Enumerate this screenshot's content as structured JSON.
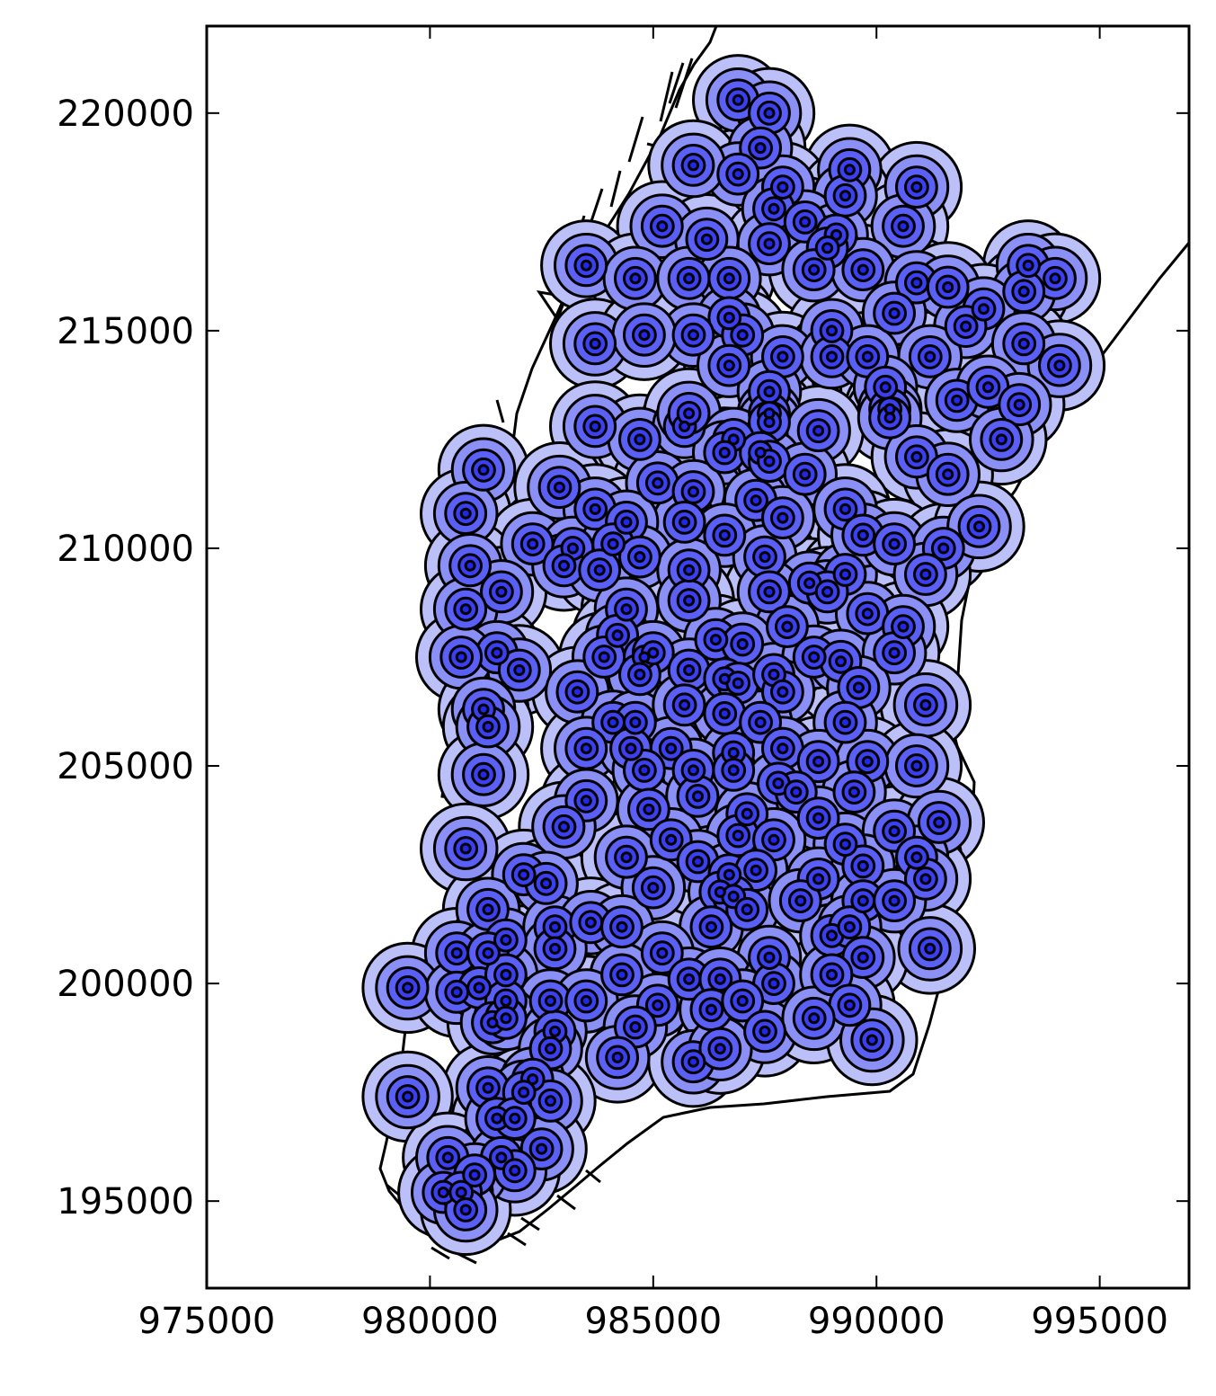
{
  "chart_data": {
    "type": "scatter",
    "title": "",
    "xlabel": "",
    "ylabel": "",
    "xlim": [
      975000,
      997000
    ],
    "ylim": [
      193000,
      222000
    ],
    "xticks": [
      975000,
      980000,
      985000,
      990000,
      995000
    ],
    "yticks": [
      195000,
      200000,
      205000,
      210000,
      215000,
      220000
    ],
    "xtick_labels": [
      "975000",
      "980000",
      "985000",
      "990000",
      "995000"
    ],
    "ytick_labels": [
      "195000",
      "200000",
      "205000",
      "210000",
      "215000",
      "220000"
    ],
    "grid": false,
    "legend": "none",
    "buffer_radii": [
      1000,
      700,
      450,
      250,
      100
    ],
    "buffer_colors": [
      "#bcc0f8",
      "#8a90f5",
      "#5a5ff5",
      "#3a3ff0",
      "#2226e6"
    ],
    "outline_color": "#000000",
    "series": [
      {
        "values": [
          [
            986900,
            220300
          ],
          [
            987600,
            220000
          ],
          [
            987400,
            219200
          ],
          [
            986900,
            218600
          ],
          [
            985900,
            218800
          ],
          [
            989400,
            218700
          ],
          [
            990900,
            218300
          ],
          [
            987900,
            218300
          ],
          [
            989300,
            218100
          ],
          [
            987700,
            217800
          ],
          [
            988400,
            217500
          ],
          [
            985200,
            217400
          ],
          [
            986200,
            217100
          ],
          [
            989100,
            217200
          ],
          [
            990600,
            217400
          ],
          [
            988900,
            216900
          ],
          [
            987600,
            217000
          ],
          [
            993400,
            216500
          ],
          [
            994000,
            216200
          ],
          [
            983500,
            216500
          ],
          [
            984600,
            216200
          ],
          [
            985800,
            216200
          ],
          [
            986700,
            216200
          ],
          [
            988600,
            216400
          ],
          [
            989700,
            216400
          ],
          [
            990900,
            216100
          ],
          [
            991600,
            216000
          ],
          [
            993300,
            215900
          ],
          [
            992400,
            215500
          ],
          [
            986700,
            215300
          ],
          [
            987000,
            214900
          ],
          [
            985900,
            214900
          ],
          [
            990400,
            215400
          ],
          [
            992000,
            215100
          ],
          [
            983700,
            214700
          ],
          [
            984800,
            214900
          ],
          [
            989000,
            215000
          ],
          [
            993300,
            214700
          ],
          [
            994100,
            214200
          ],
          [
            986700,
            214200
          ],
          [
            987900,
            214400
          ],
          [
            989000,
            214400
          ],
          [
            989800,
            214400
          ],
          [
            991200,
            214400
          ],
          [
            987600,
            213600
          ],
          [
            987600,
            213100
          ],
          [
            987600,
            212900
          ],
          [
            990200,
            213700
          ],
          [
            990300,
            213200
          ],
          [
            990300,
            213000
          ],
          [
            991800,
            213400
          ],
          [
            992500,
            213700
          ],
          [
            993200,
            213300
          ],
          [
            983700,
            212800
          ],
          [
            984700,
            212500
          ],
          [
            985700,
            212800
          ],
          [
            985800,
            213100
          ],
          [
            986800,
            212500
          ],
          [
            986600,
            212200
          ],
          [
            988700,
            212700
          ],
          [
            992800,
            212500
          ],
          [
            981200,
            211800
          ],
          [
            982900,
            211400
          ],
          [
            985100,
            211500
          ],
          [
            985900,
            211300
          ],
          [
            987400,
            212200
          ],
          [
            987600,
            212000
          ],
          [
            988400,
            211700
          ],
          [
            990900,
            212100
          ],
          [
            991600,
            211700
          ],
          [
            980800,
            210800
          ],
          [
            983700,
            210900
          ],
          [
            987300,
            211100
          ],
          [
            987900,
            210700
          ],
          [
            989300,
            210900
          ],
          [
            985700,
            210600
          ],
          [
            984400,
            210600
          ],
          [
            982300,
            210100
          ],
          [
            983200,
            210000
          ],
          [
            984100,
            210100
          ],
          [
            980900,
            209600
          ],
          [
            983000,
            209600
          ],
          [
            984700,
            209800
          ],
          [
            986600,
            210300
          ],
          [
            987500,
            209800
          ],
          [
            988500,
            209200
          ],
          [
            989300,
            209400
          ],
          [
            989700,
            210300
          ],
          [
            990400,
            210100
          ],
          [
            991500,
            210000
          ],
          [
            992300,
            210500
          ],
          [
            991100,
            209400
          ],
          [
            981600,
            209000
          ],
          [
            983800,
            209500
          ],
          [
            985800,
            209500
          ],
          [
            987600,
            209000
          ],
          [
            988900,
            209000
          ],
          [
            980800,
            208600
          ],
          [
            984400,
            208600
          ],
          [
            985800,
            208800
          ],
          [
            988000,
            208200
          ],
          [
            989800,
            208500
          ],
          [
            990600,
            208200
          ],
          [
            984200,
            208000
          ],
          [
            986400,
            207900
          ],
          [
            987000,
            207800
          ],
          [
            981500,
            207600
          ],
          [
            980700,
            207500
          ],
          [
            982000,
            207200
          ],
          [
            983900,
            207500
          ],
          [
            984800,
            207500
          ],
          [
            985000,
            207600
          ],
          [
            984700,
            207100
          ],
          [
            985800,
            207200
          ],
          [
            986600,
            207000
          ],
          [
            986900,
            206900
          ],
          [
            987700,
            207100
          ],
          [
            988600,
            207500
          ],
          [
            989200,
            207400
          ],
          [
            990400,
            207600
          ],
          [
            983300,
            206700
          ],
          [
            987900,
            206700
          ],
          [
            989600,
            206800
          ],
          [
            981200,
            206300
          ],
          [
            981300,
            205900
          ],
          [
            984100,
            206000
          ],
          [
            984600,
            206000
          ],
          [
            985700,
            206400
          ],
          [
            986600,
            206200
          ],
          [
            987400,
            206000
          ],
          [
            989300,
            206000
          ],
          [
            991100,
            206400
          ],
          [
            983500,
            205400
          ],
          [
            984500,
            205400
          ],
          [
            985400,
            205400
          ],
          [
            986800,
            205300
          ],
          [
            986800,
            204900
          ],
          [
            987900,
            205400
          ],
          [
            988700,
            205100
          ],
          [
            989800,
            205100
          ],
          [
            990900,
            205000
          ],
          [
            981200,
            204800
          ],
          [
            984800,
            204900
          ],
          [
            985900,
            204900
          ],
          [
            987800,
            204600
          ],
          [
            988200,
            204400
          ],
          [
            989500,
            204400
          ],
          [
            983500,
            204200
          ],
          [
            984900,
            204000
          ],
          [
            986000,
            204300
          ],
          [
            987100,
            203900
          ],
          [
            988700,
            203800
          ],
          [
            983000,
            203600
          ],
          [
            986900,
            203400
          ],
          [
            987700,
            203300
          ],
          [
            989300,
            203200
          ],
          [
            990400,
            203500
          ],
          [
            991400,
            203700
          ],
          [
            980800,
            203100
          ],
          [
            985400,
            203300
          ],
          [
            986000,
            202800
          ],
          [
            990900,
            202900
          ],
          [
            982100,
            202500
          ],
          [
            982600,
            202300
          ],
          [
            984400,
            202900
          ],
          [
            986700,
            202500
          ],
          [
            987300,
            202600
          ],
          [
            988700,
            202400
          ],
          [
            989700,
            202700
          ],
          [
            991100,
            202400
          ],
          [
            985000,
            202200
          ],
          [
            986500,
            202100
          ],
          [
            986800,
            202000
          ],
          [
            987100,
            201700
          ],
          [
            988300,
            201900
          ],
          [
            989700,
            201900
          ],
          [
            990400,
            201900
          ],
          [
            981300,
            201700
          ],
          [
            981700,
            201000
          ],
          [
            982800,
            201300
          ],
          [
            983600,
            201400
          ],
          [
            984300,
            201300
          ],
          [
            986300,
            201300
          ],
          [
            989000,
            201100
          ],
          [
            989400,
            201300
          ],
          [
            991200,
            200800
          ],
          [
            980600,
            200700
          ],
          [
            981300,
            200700
          ],
          [
            982800,
            200800
          ],
          [
            985200,
            200700
          ],
          [
            987600,
            200600
          ],
          [
            989700,
            200600
          ],
          [
            979500,
            199900
          ],
          [
            980600,
            199800
          ],
          [
            981100,
            199900
          ],
          [
            981700,
            200200
          ],
          [
            984300,
            200200
          ],
          [
            985800,
            200100
          ],
          [
            986500,
            200100
          ],
          [
            987700,
            200000
          ],
          [
            989000,
            200200
          ],
          [
            981700,
            199600
          ],
          [
            982700,
            199600
          ],
          [
            983500,
            199600
          ],
          [
            985100,
            199500
          ],
          [
            986300,
            199400
          ],
          [
            987000,
            199600
          ],
          [
            989400,
            199500
          ],
          [
            981400,
            199100
          ],
          [
            981700,
            199200
          ],
          [
            982800,
            198900
          ],
          [
            984600,
            199000
          ],
          [
            987500,
            198900
          ],
          [
            988600,
            199200
          ],
          [
            989900,
            198700
          ],
          [
            982700,
            198500
          ],
          [
            984200,
            198300
          ],
          [
            985900,
            198200
          ],
          [
            986500,
            198500
          ],
          [
            981300,
            197600
          ],
          [
            982300,
            197800
          ],
          [
            982100,
            197500
          ],
          [
            982700,
            197300
          ],
          [
            979500,
            197400
          ],
          [
            981500,
            196900
          ],
          [
            981900,
            196900
          ],
          [
            982500,
            196200
          ],
          [
            980400,
            196000
          ],
          [
            981600,
            196000
          ],
          [
            981900,
            195700
          ],
          [
            981000,
            195600
          ],
          [
            980300,
            195200
          ],
          [
            980700,
            195200
          ],
          [
            980800,
            194800
          ]
        ]
      }
    ]
  }
}
